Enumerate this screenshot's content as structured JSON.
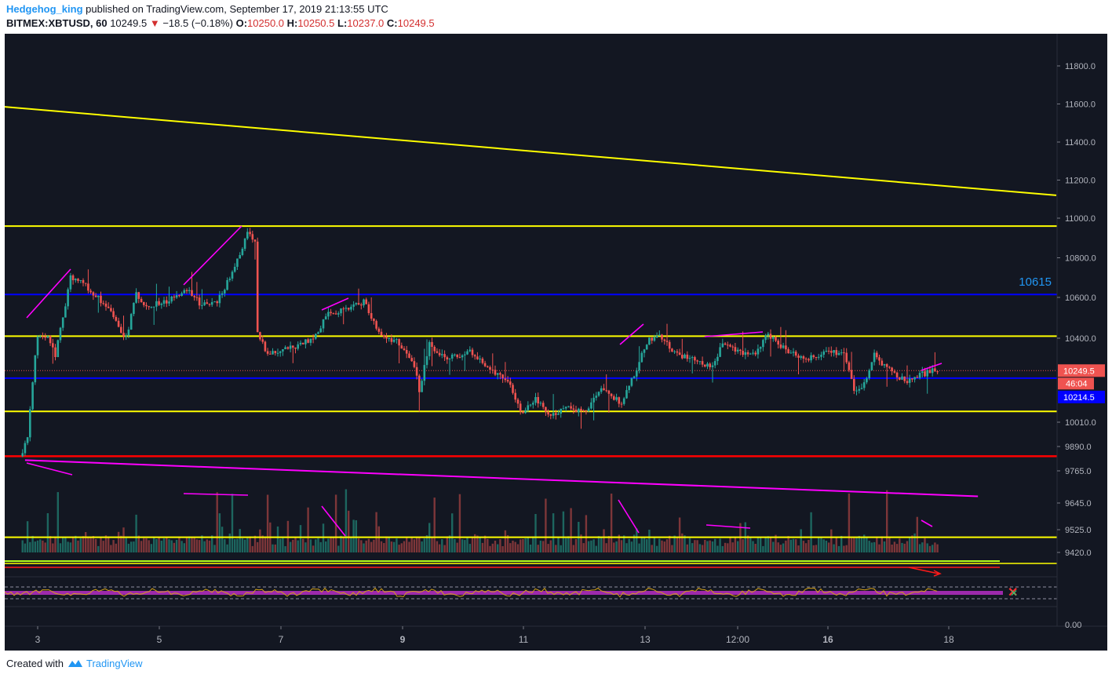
{
  "header": {
    "author": "Hedgehog_king",
    "published_text": "published on TradingView.com, September 17, 2019 21:13:55 UTC",
    "symbol": "BITMEX:XBTUSD, 60",
    "last": "10249.5",
    "down_icon": "triangle-down-icon",
    "change": "−18.5 (−0.18%)",
    "o_label": "O:",
    "o_value": "10250.0",
    "h_label": "H:",
    "h_value": "10250.5",
    "l_label": "L:",
    "l_value": "10237.0",
    "c_label": "C:",
    "c_value": "10249.5"
  },
  "footer": {
    "created_with": "Created with",
    "brand": "TradingView",
    "logo_icon": "tradingview-cloud-icon"
  },
  "colors": {
    "background": "#131722",
    "up": "#26a69a",
    "down": "#ef5350",
    "yellow": "#ffff00",
    "magenta": "#ff00ff",
    "blue": "#0000ff",
    "red": "#ff0000",
    "label_blue": "#2196f3"
  },
  "chart_data": {
    "type": "candlestick",
    "symbol": "BITMEX:XBTUSD",
    "interval": "60",
    "x_ticks": [
      {
        "label": "3",
        "bold": false
      },
      {
        "label": "5",
        "bold": false
      },
      {
        "label": "7",
        "bold": false
      },
      {
        "label": "9",
        "bold": true
      },
      {
        "label": "11",
        "bold": false
      },
      {
        "label": "13",
        "bold": false
      },
      {
        "label": "12:00",
        "bold": false
      },
      {
        "label": "16",
        "bold": true
      },
      {
        "label": "18",
        "bold": false
      }
    ],
    "y_ticks": [
      "11800.0",
      "11600.0",
      "11400.0",
      "11200.0",
      "11000.0",
      "10800.0",
      "10600.0",
      "10400.0",
      "10010.0",
      "9890.0",
      "9765.0",
      "9645.0",
      "9525.0",
      "9420.0"
    ],
    "indicator_ticks": [
      "0.00"
    ],
    "price_path": [
      [
        "2019-09-02 18:00",
        9840
      ],
      [
        "2019-09-02 21:00",
        9930
      ],
      [
        "2019-09-02 23:00",
        10200
      ],
      [
        "2019-09-03 01:00",
        10420
      ],
      [
        "2019-09-03 05:00",
        10400
      ],
      [
        "2019-09-03 08:00",
        10320
      ],
      [
        "2019-09-03 11:00",
        10500
      ],
      [
        "2019-09-03 14:00",
        10700
      ],
      [
        "2019-09-03 18:00",
        10680
      ],
      [
        "2019-09-04 00:00",
        10610
      ],
      [
        "2019-09-04 06:00",
        10520
      ],
      [
        "2019-09-04 12:00",
        10400
      ],
      [
        "2019-09-04 16:00",
        10620
      ],
      [
        "2019-09-04 20:00",
        10560
      ],
      [
        "2019-09-05 04:00",
        10580
      ],
      [
        "2019-09-05 12:00",
        10640
      ],
      [
        "2019-09-05 18:00",
        10560
      ],
      [
        "2019-09-06 00:00",
        10580
      ],
      [
        "2019-09-06 06:00",
        10720
      ],
      [
        "2019-09-06 12:00",
        10920
      ],
      [
        "2019-09-06 15:00",
        10880
      ],
      [
        "2019-09-06 16:00",
        10420
      ],
      [
        "2019-09-06 20:00",
        10330
      ],
      [
        "2019-09-07 06:00",
        10360
      ],
      [
        "2019-09-07 14:00",
        10400
      ],
      [
        "2019-09-07 20:00",
        10520
      ],
      [
        "2019-09-08 04:00",
        10540
      ],
      [
        "2019-09-08 10:00",
        10580
      ],
      [
        "2019-09-08 16:00",
        10420
      ],
      [
        "2019-09-09 00:00",
        10380
      ],
      [
        "2019-09-09 06:00",
        10270
      ],
      [
        "2019-09-09 08:00",
        10160
      ],
      [
        "2019-09-09 12:00",
        10380
      ],
      [
        "2019-09-09 18:00",
        10300
      ],
      [
        "2019-09-10 04:00",
        10340
      ],
      [
        "2019-09-10 12:00",
        10260
      ],
      [
        "2019-09-10 20:00",
        10180
      ],
      [
        "2019-09-11 00:00",
        10050
      ],
      [
        "2019-09-11 06:00",
        10120
      ],
      [
        "2019-09-11 12:00",
        10030
      ],
      [
        "2019-09-11 18:00",
        10080
      ],
      [
        "2019-09-12 02:00",
        10060
      ],
      [
        "2019-09-12 08:00",
        10160
      ],
      [
        "2019-09-12 16:00",
        10100
      ],
      [
        "2019-09-12 22:00",
        10260
      ],
      [
        "2019-09-13 02:00",
        10380
      ],
      [
        "2019-09-13 06:00",
        10420
      ],
      [
        "2019-09-13 14:00",
        10320
      ],
      [
        "2019-09-13 22:00",
        10300
      ],
      [
        "2019-09-14 04:00",
        10260
      ],
      [
        "2019-09-14 08:00",
        10380
      ],
      [
        "2019-09-14 14:00",
        10340
      ],
      [
        "2019-09-14 20:00",
        10320
      ],
      [
        "2019-09-15 02:00",
        10420
      ],
      [
        "2019-09-15 10:00",
        10330
      ],
      [
        "2019-09-15 18:00",
        10310
      ],
      [
        "2019-09-16 02:00",
        10340
      ],
      [
        "2019-09-16 08:00",
        10320
      ],
      [
        "2019-09-16 12:00",
        10160
      ],
      [
        "2019-09-16 16:00",
        10190
      ],
      [
        "2019-09-16 20:00",
        10320
      ],
      [
        "2019-09-17 02:00",
        10250
      ],
      [
        "2019-09-17 08:00",
        10200
      ],
      [
        "2019-09-17 14:00",
        10230
      ],
      [
        "2019-09-17 20:00",
        10250
      ]
    ],
    "horizontal_lines": [
      {
        "color": "yellow",
        "price": 10960
      },
      {
        "color": "blue",
        "price": 10615
      },
      {
        "color": "yellow",
        "price": 10410
      },
      {
        "color": "blue",
        "price": 10214.5
      },
      {
        "color": "yellow",
        "price": 10060
      },
      {
        "color": "red",
        "price": 9840
      },
      {
        "color": "yellow",
        "price": 9490
      }
    ],
    "trendlines": [
      {
        "color": "yellow",
        "from": [
          "2019-08-29 04:00",
          11700
        ],
        "to": [
          "2019-09-19 19:00",
          11120
        ]
      },
      {
        "color": "magenta",
        "from": [
          "2019-09-02 19:00",
          9820
        ],
        "to": [
          "2019-09-18 12:00",
          9670
        ]
      }
    ],
    "price_labels": [
      {
        "text": "10615",
        "kind": "line-label"
      },
      {
        "text": "10249.5",
        "kind": "last-price"
      },
      {
        "text": "46:04",
        "kind": "bar-countdown"
      },
      {
        "text": "10214.5",
        "kind": "blue-line"
      }
    ]
  }
}
